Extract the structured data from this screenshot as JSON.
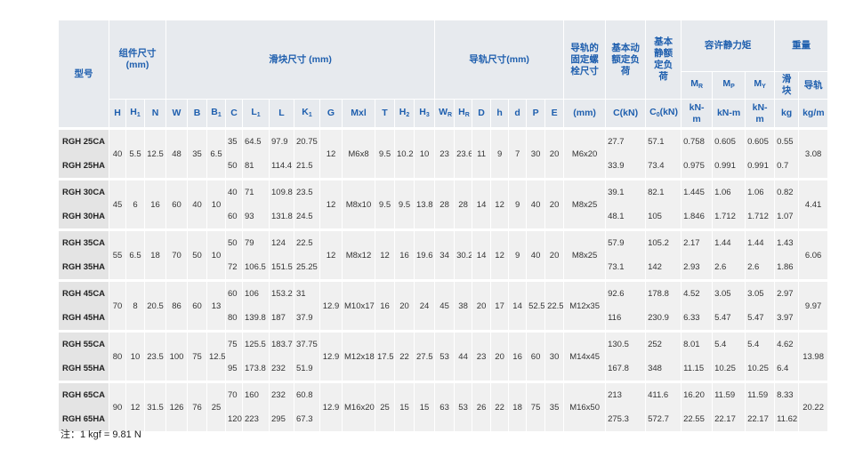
{
  "header": {
    "model": "型号",
    "groups": [
      "组件尺寸 (mm)",
      "滑块尺寸 (mm)",
      "导轨尺寸(mm)",
      "导轨的固定螺栓尺寸",
      "基本动额定负荷",
      "基本静额定负荷",
      "容许静力矩",
      "重量"
    ],
    "columns": [
      {
        "label": "H"
      },
      {
        "label": "H",
        "sub": "1"
      },
      {
        "label": "N"
      },
      {
        "label": "W"
      },
      {
        "label": "B"
      },
      {
        "label": "B",
        "sub": "1"
      },
      {
        "label": "C"
      },
      {
        "label": "L",
        "sub": "1"
      },
      {
        "label": "L"
      },
      {
        "label": "K",
        "sub": "1"
      },
      {
        "label": "G"
      },
      {
        "label": "Mxl"
      },
      {
        "label": "T"
      },
      {
        "label": "H",
        "sub": "2"
      },
      {
        "label": "H",
        "sub": "3"
      },
      {
        "label": "W",
        "sub": "R"
      },
      {
        "label": "H",
        "sub": "R"
      },
      {
        "label": "D"
      },
      {
        "label": "h"
      },
      {
        "label": "d"
      },
      {
        "label": "P"
      },
      {
        "label": "E"
      },
      {
        "label": "(mm)"
      },
      {
        "label": "C(kN)"
      },
      {
        "label": "C",
        "sub": "0",
        "suffix": "(kN)"
      }
    ],
    "moments": [
      {
        "label": "M",
        "sub": "R"
      },
      {
        "label": "M",
        "sub": "P"
      },
      {
        "label": "M",
        "sub": "Y"
      }
    ],
    "moment_units": [
      "kN-m",
      "kN-m",
      "kN-m"
    ],
    "weights": [
      "滑块",
      "导轨"
    ],
    "weight_units": [
      "kg",
      "kg/m"
    ]
  },
  "models": [
    {
      "shared": [
        "40",
        "5.5",
        "12.5",
        "48",
        "35",
        "6.5",
        "12",
        "M6x8",
        "9.5",
        "10.2",
        "10",
        "23",
        "23.6",
        "11",
        "9",
        "7",
        "30",
        "20",
        "M6x20",
        "3.08"
      ],
      "variants": [
        {
          "name": "RGH 25CA",
          "values": [
            "35",
            "64.5",
            "97.9",
            "20.75",
            "27.7",
            "57.1",
            "0.758",
            "0.605",
            "0.605",
            "0.55"
          ]
        },
        {
          "name": "RGH 25HA",
          "values": [
            "50",
            "81",
            "114.4",
            "21.5",
            "33.9",
            "73.4",
            "0.975",
            "0.991",
            "0.991",
            "0.7"
          ]
        }
      ]
    },
    {
      "shared": [
        "45",
        "6",
        "16",
        "60",
        "40",
        "10",
        "12",
        "M8x10",
        "9.5",
        "9.5",
        "13.8",
        "28",
        "28",
        "14",
        "12",
        "9",
        "40",
        "20",
        "M8x25",
        "4.41"
      ],
      "variants": [
        {
          "name": "RGH 30CA",
          "values": [
            "40",
            "71",
            "109.8",
            "23.5",
            "39.1",
            "82.1",
            "1.445",
            "1.06",
            "1.06",
            "0.82"
          ]
        },
        {
          "name": "RGH 30HA",
          "values": [
            "60",
            "93",
            "131.8",
            "24.5",
            "48.1",
            "105",
            "1.846",
            "1.712",
            "1.712",
            "1.07"
          ]
        }
      ]
    },
    {
      "shared": [
        "55",
        "6.5",
        "18",
        "70",
        "50",
        "10",
        "12",
        "M8x12",
        "12",
        "16",
        "19.6",
        "34",
        "30.2",
        "14",
        "12",
        "9",
        "40",
        "20",
        "M8x25",
        "6.06"
      ],
      "variants": [
        {
          "name": "RGH 35CA",
          "values": [
            "50",
            "79",
            "124",
            "22.5",
            "57.9",
            "105.2",
            "2.17",
            "1.44",
            "1.44",
            "1.43"
          ]
        },
        {
          "name": "RGH 35HA",
          "values": [
            "72",
            "106.5",
            "151.5",
            "25.25",
            "73.1",
            "142",
            "2.93",
            "2.6",
            "2.6",
            "1.86"
          ]
        }
      ]
    },
    {
      "shared": [
        "70",
        "8",
        "20.5",
        "86",
        "60",
        "13",
        "12.9",
        "M10x17",
        "16",
        "20",
        "24",
        "45",
        "38",
        "20",
        "17",
        "14",
        "52.5",
        "22.5",
        "M12x35",
        "9.97"
      ],
      "variants": [
        {
          "name": "RGH 45CA",
          "values": [
            "60",
            "106",
            "153.2",
            "31",
            "92.6",
            "178.8",
            "4.52",
            "3.05",
            "3.05",
            "2.97"
          ]
        },
        {
          "name": "RGH 45HA",
          "values": [
            "80",
            "139.8",
            "187",
            "37.9",
            "116",
            "230.9",
            "6.33",
            "5.47",
            "5.47",
            "3.97"
          ]
        }
      ]
    },
    {
      "shared": [
        "80",
        "10",
        "23.5",
        "100",
        "75",
        "12.5",
        "12.9",
        "M12x18",
        "17.5",
        "22",
        "27.5",
        "53",
        "44",
        "23",
        "20",
        "16",
        "60",
        "30",
        "M14x45",
        "13.98"
      ],
      "variants": [
        {
          "name": "RGH 55CA",
          "values": [
            "75",
            "125.5",
            "183.7",
            "37.75",
            "130.5",
            "252",
            "8.01",
            "5.4",
            "5.4",
            "4.62"
          ]
        },
        {
          "name": "RGH 55HA",
          "values": [
            "95",
            "173.8",
            "232",
            "51.9",
            "167.8",
            "348",
            "11.15",
            "10.25",
            "10.25",
            "6.4"
          ]
        }
      ]
    },
    {
      "shared": [
        "90",
        "12",
        "31.5",
        "126",
        "76",
        "25",
        "12.9",
        "M16x20",
        "25",
        "15",
        "15",
        "63",
        "53",
        "26",
        "22",
        "18",
        "75",
        "35",
        "M16x50",
        "20.22"
      ],
      "variants": [
        {
          "name": "RGH 65CA",
          "values": [
            "70",
            "160",
            "232",
            "60.8",
            "213",
            "411.6",
            "16.20",
            "11.59",
            "11.59",
            "8.33"
          ]
        },
        {
          "name": "RGH 65HA",
          "values": [
            "120",
            "223",
            "295",
            "67.3",
            "275.3",
            "572.7",
            "22.55",
            "22.17",
            "22.17",
            "11.62"
          ]
        }
      ]
    }
  ],
  "note": "注：1 kgf = 9.81 N"
}
